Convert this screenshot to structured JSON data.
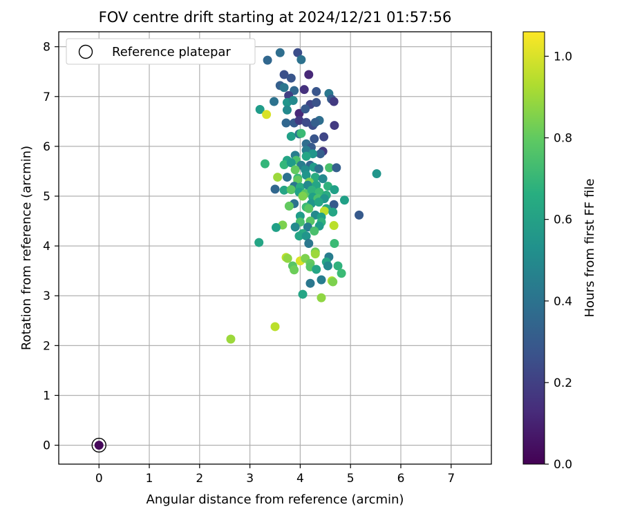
{
  "chart_data": {
    "type": "scatter",
    "title": "FOV centre drift starting at 2024/12/21 01:57:56",
    "xlabel": "Angular distance from reference (arcmin)",
    "ylabel": "Rotation from reference (arcmin)",
    "xlim": [
      -0.8,
      7.8
    ],
    "ylim": [
      -0.38,
      8.3
    ],
    "xticks": [
      0,
      1,
      2,
      3,
      4,
      5,
      6,
      7
    ],
    "yticks": [
      0,
      1,
      2,
      3,
      4,
      5,
      6,
      7,
      8
    ],
    "grid": true,
    "legend": {
      "position": "top-left",
      "entries": [
        "Reference platepar"
      ]
    },
    "colorbar": {
      "label": "Hours from first FF file",
      "colormap": "viridis",
      "min": 0.0,
      "max": 1.06,
      "ticks": [
        "0.0",
        "0.2",
        "0.4",
        "0.6",
        "0.8",
        "1.0"
      ]
    },
    "reference_point": {
      "x": 0,
      "y": 0,
      "c": 0.02
    },
    "points": [
      {
        "x": 3.6,
        "y": 7.88,
        "c": 0.38
      },
      {
        "x": 3.95,
        "y": 7.88,
        "c": 0.25
      },
      {
        "x": 3.35,
        "y": 7.73,
        "c": 0.35
      },
      {
        "x": 4.02,
        "y": 7.74,
        "c": 0.4
      },
      {
        "x": 3.68,
        "y": 7.44,
        "c": 0.26
      },
      {
        "x": 3.82,
        "y": 7.37,
        "c": 0.28
      },
      {
        "x": 4.17,
        "y": 7.44,
        "c": 0.12
      },
      {
        "x": 3.6,
        "y": 7.22,
        "c": 0.32
      },
      {
        "x": 3.68,
        "y": 7.18,
        "c": 0.42
      },
      {
        "x": 3.88,
        "y": 7.12,
        "c": 0.35
      },
      {
        "x": 4.08,
        "y": 7.14,
        "c": 0.15
      },
      {
        "x": 4.32,
        "y": 7.1,
        "c": 0.28
      },
      {
        "x": 4.57,
        "y": 7.06,
        "c": 0.42
      },
      {
        "x": 3.77,
        "y": 7.02,
        "c": 0.2
      },
      {
        "x": 4.62,
        "y": 6.95,
        "c": 0.3
      },
      {
        "x": 4.67,
        "y": 6.9,
        "c": 0.18
      },
      {
        "x": 3.2,
        "y": 6.74,
        "c": 0.58
      },
      {
        "x": 3.48,
        "y": 6.9,
        "c": 0.4
      },
      {
        "x": 3.74,
        "y": 6.88,
        "c": 0.55
      },
      {
        "x": 3.86,
        "y": 6.92,
        "c": 0.5
      },
      {
        "x": 4.2,
        "y": 6.84,
        "c": 0.22
      },
      {
        "x": 4.32,
        "y": 6.88,
        "c": 0.27
      },
      {
        "x": 3.74,
        "y": 6.73,
        "c": 0.5
      },
      {
        "x": 3.98,
        "y": 6.66,
        "c": 0.12
      },
      {
        "x": 4.1,
        "y": 6.75,
        "c": 0.3
      },
      {
        "x": 3.33,
        "y": 6.64,
        "c": 1.0
      },
      {
        "x": 3.72,
        "y": 6.47,
        "c": 0.35
      },
      {
        "x": 3.88,
        "y": 6.47,
        "c": 0.3
      },
      {
        "x": 3.98,
        "y": 6.52,
        "c": 0.18
      },
      {
        "x": 4.12,
        "y": 6.48,
        "c": 0.24
      },
      {
        "x": 4.25,
        "y": 6.42,
        "c": 0.25
      },
      {
        "x": 4.38,
        "y": 6.52,
        "c": 0.38
      },
      {
        "x": 4.3,
        "y": 6.48,
        "c": 0.32
      },
      {
        "x": 4.68,
        "y": 6.42,
        "c": 0.18
      },
      {
        "x": 3.82,
        "y": 6.2,
        "c": 0.6
      },
      {
        "x": 3.98,
        "y": 6.25,
        "c": 0.42
      },
      {
        "x": 4.02,
        "y": 6.26,
        "c": 0.72
      },
      {
        "x": 4.28,
        "y": 6.15,
        "c": 0.28
      },
      {
        "x": 4.47,
        "y": 6.19,
        "c": 0.22
      },
      {
        "x": 4.12,
        "y": 6.05,
        "c": 0.38
      },
      {
        "x": 4.22,
        "y": 5.98,
        "c": 0.3
      },
      {
        "x": 4.12,
        "y": 5.92,
        "c": 0.45
      },
      {
        "x": 4.45,
        "y": 5.9,
        "c": 0.18
      },
      {
        "x": 4.4,
        "y": 5.85,
        "c": 0.32
      },
      {
        "x": 4.25,
        "y": 5.85,
        "c": 0.55
      },
      {
        "x": 3.9,
        "y": 5.82,
        "c": 0.45
      },
      {
        "x": 4.12,
        "y": 5.8,
        "c": 0.62
      },
      {
        "x": 3.74,
        "y": 5.72,
        "c": 0.62
      },
      {
        "x": 3.92,
        "y": 5.72,
        "c": 0.75
      },
      {
        "x": 3.3,
        "y": 5.65,
        "c": 0.7
      },
      {
        "x": 3.68,
        "y": 5.63,
        "c": 0.7
      },
      {
        "x": 3.82,
        "y": 5.67,
        "c": 0.58
      },
      {
        "x": 4.02,
        "y": 5.62,
        "c": 0.45
      },
      {
        "x": 4.2,
        "y": 5.62,
        "c": 0.35
      },
      {
        "x": 4.27,
        "y": 5.58,
        "c": 0.58
      },
      {
        "x": 3.9,
        "y": 5.53,
        "c": 0.8
      },
      {
        "x": 4.1,
        "y": 5.53,
        "c": 0.52
      },
      {
        "x": 4.37,
        "y": 5.55,
        "c": 0.4
      },
      {
        "x": 4.58,
        "y": 5.57,
        "c": 0.75
      },
      {
        "x": 4.72,
        "y": 5.57,
        "c": 0.32
      },
      {
        "x": 5.52,
        "y": 5.45,
        "c": 0.55
      },
      {
        "x": 3.55,
        "y": 5.38,
        "c": 0.9
      },
      {
        "x": 3.74,
        "y": 5.38,
        "c": 0.4
      },
      {
        "x": 3.95,
        "y": 5.36,
        "c": 0.72
      },
      {
        "x": 3.95,
        "y": 5.32,
        "c": 0.8
      },
      {
        "x": 4.12,
        "y": 5.42,
        "c": 0.55
      },
      {
        "x": 4.3,
        "y": 5.38,
        "c": 0.65
      },
      {
        "x": 4.45,
        "y": 5.35,
        "c": 0.5
      },
      {
        "x": 4.18,
        "y": 5.28,
        "c": 0.85
      },
      {
        "x": 3.88,
        "y": 5.2,
        "c": 0.42
      },
      {
        "x": 4.0,
        "y": 5.18,
        "c": 0.65
      },
      {
        "x": 4.15,
        "y": 5.22,
        "c": 0.5
      },
      {
        "x": 4.32,
        "y": 5.22,
        "c": 0.62
      },
      {
        "x": 4.55,
        "y": 5.2,
        "c": 0.68
      },
      {
        "x": 4.68,
        "y": 5.13,
        "c": 0.6
      },
      {
        "x": 3.5,
        "y": 5.14,
        "c": 0.35
      },
      {
        "x": 3.68,
        "y": 5.12,
        "c": 0.62
      },
      {
        "x": 3.82,
        "y": 5.13,
        "c": 0.78
      },
      {
        "x": 3.98,
        "y": 5.08,
        "c": 0.6
      },
      {
        "x": 4.1,
        "y": 5.05,
        "c": 0.78
      },
      {
        "x": 4.23,
        "y": 5.12,
        "c": 0.68
      },
      {
        "x": 4.38,
        "y": 5.08,
        "c": 0.72
      },
      {
        "x": 4.52,
        "y": 5.02,
        "c": 0.65
      },
      {
        "x": 4.05,
        "y": 5.0,
        "c": 0.85
      },
      {
        "x": 4.25,
        "y": 4.98,
        "c": 0.6
      },
      {
        "x": 4.35,
        "y": 4.95,
        "c": 0.75
      },
      {
        "x": 4.48,
        "y": 4.95,
        "c": 0.55
      },
      {
        "x": 4.88,
        "y": 4.92,
        "c": 0.6
      },
      {
        "x": 3.88,
        "y": 4.85,
        "c": 0.4
      },
      {
        "x": 4.22,
        "y": 4.85,
        "c": 0.55
      },
      {
        "x": 4.37,
        "y": 4.88,
        "c": 0.62
      },
      {
        "x": 4.67,
        "y": 4.83,
        "c": 0.3
      },
      {
        "x": 3.78,
        "y": 4.8,
        "c": 0.8
      },
      {
        "x": 4.12,
        "y": 4.78,
        "c": 0.72
      },
      {
        "x": 4.17,
        "y": 4.75,
        "c": 0.78
      },
      {
        "x": 4.52,
        "y": 4.75,
        "c": 0.62
      },
      {
        "x": 4.48,
        "y": 4.7,
        "c": 0.95
      },
      {
        "x": 4.65,
        "y": 4.68,
        "c": 0.62
      },
      {
        "x": 5.17,
        "y": 4.62,
        "c": 0.3
      },
      {
        "x": 4.0,
        "y": 4.6,
        "c": 0.58
      },
      {
        "x": 4.3,
        "y": 4.62,
        "c": 0.5
      },
      {
        "x": 4.42,
        "y": 4.58,
        "c": 0.6
      },
      {
        "x": 4.2,
        "y": 4.5,
        "c": 0.78
      },
      {
        "x": 4.42,
        "y": 4.48,
        "c": 0.68
      },
      {
        "x": 4.0,
        "y": 4.48,
        "c": 0.75
      },
      {
        "x": 3.65,
        "y": 4.42,
        "c": 0.85
      },
      {
        "x": 3.52,
        "y": 4.37,
        "c": 0.6
      },
      {
        "x": 3.9,
        "y": 4.38,
        "c": 0.5
      },
      {
        "x": 4.15,
        "y": 4.38,
        "c": 0.45
      },
      {
        "x": 4.38,
        "y": 4.4,
        "c": 0.58
      },
      {
        "x": 4.67,
        "y": 4.41,
        "c": 0.95
      },
      {
        "x": 4.28,
        "y": 4.3,
        "c": 0.75
      },
      {
        "x": 4.05,
        "y": 4.25,
        "c": 0.65
      },
      {
        "x": 3.98,
        "y": 4.2,
        "c": 0.62
      },
      {
        "x": 4.12,
        "y": 4.2,
        "c": 0.55
      },
      {
        "x": 3.18,
        "y": 4.07,
        "c": 0.62
      },
      {
        "x": 4.17,
        "y": 4.05,
        "c": 0.42
      },
      {
        "x": 4.68,
        "y": 4.05,
        "c": 0.72
      },
      {
        "x": 4.3,
        "y": 3.88,
        "c": 0.82
      },
      {
        "x": 4.3,
        "y": 3.84,
        "c": 0.9
      },
      {
        "x": 3.72,
        "y": 3.77,
        "c": 0.95
      },
      {
        "x": 3.75,
        "y": 3.75,
        "c": 0.88
      },
      {
        "x": 4.0,
        "y": 3.7,
        "c": 1.0
      },
      {
        "x": 4.1,
        "y": 3.75,
        "c": 0.85
      },
      {
        "x": 4.57,
        "y": 3.78,
        "c": 0.45
      },
      {
        "x": 4.2,
        "y": 3.65,
        "c": 0.8
      },
      {
        "x": 4.52,
        "y": 3.68,
        "c": 0.62
      },
      {
        "x": 3.85,
        "y": 3.6,
        "c": 0.78
      },
      {
        "x": 4.2,
        "y": 3.58,
        "c": 0.78
      },
      {
        "x": 4.55,
        "y": 3.6,
        "c": 0.5
      },
      {
        "x": 4.75,
        "y": 3.6,
        "c": 0.68
      },
      {
        "x": 3.88,
        "y": 3.52,
        "c": 0.82
      },
      {
        "x": 4.32,
        "y": 3.53,
        "c": 0.62
      },
      {
        "x": 4.82,
        "y": 3.45,
        "c": 0.72
      },
      {
        "x": 4.42,
        "y": 3.32,
        "c": 0.45
      },
      {
        "x": 4.63,
        "y": 3.3,
        "c": 0.95
      },
      {
        "x": 4.65,
        "y": 3.28,
        "c": 0.85
      },
      {
        "x": 4.2,
        "y": 3.25,
        "c": 0.42
      },
      {
        "x": 4.05,
        "y": 3.03,
        "c": 0.62
      },
      {
        "x": 4.42,
        "y": 2.96,
        "c": 0.88
      },
      {
        "x": 3.5,
        "y": 2.38,
        "c": 0.95
      },
      {
        "x": 2.62,
        "y": 2.13,
        "c": 0.9
      }
    ]
  }
}
